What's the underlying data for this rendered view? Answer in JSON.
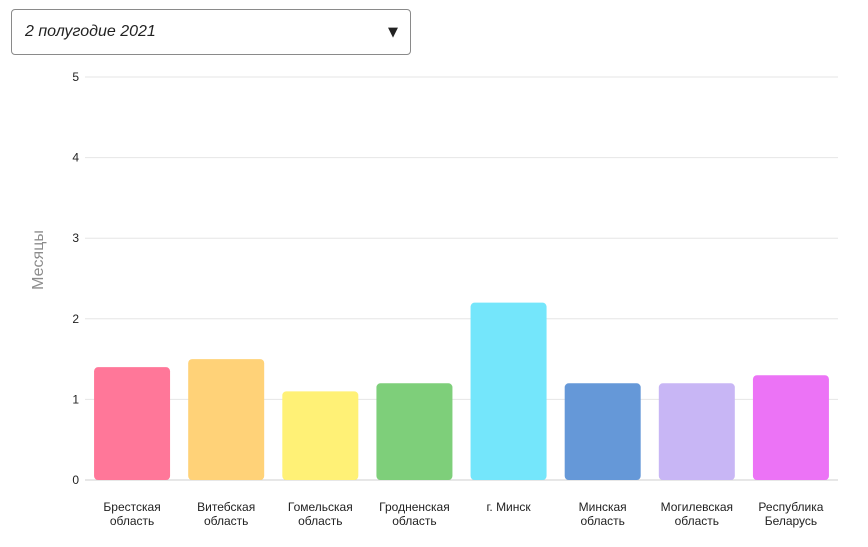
{
  "period_select": {
    "value": "2 полугодие 2021",
    "arrow_icon": "triangle-down-icon"
  },
  "chart_data": {
    "type": "bar",
    "ylabel": "Месяцы",
    "ylim": [
      0,
      5
    ],
    "yticks": [
      0,
      1,
      2,
      3,
      4,
      5
    ],
    "grid": true,
    "categories": [
      [
        "Брестская",
        "область"
      ],
      [
        "Витебская",
        "область"
      ],
      [
        "Гомельская",
        "область"
      ],
      [
        "Гродненская",
        "область"
      ],
      [
        "г. Минск"
      ],
      [
        "Минская",
        "область"
      ],
      [
        "Могилевская",
        "область"
      ],
      [
        "Республика",
        "Беларусь"
      ]
    ],
    "values": [
      1.4,
      1.5,
      1.1,
      1.2,
      2.2,
      1.2,
      1.2,
      1.3
    ],
    "colors": [
      "#ff7799",
      "#ffd278",
      "#fff176",
      "#7ecf7a",
      "#74e6fb",
      "#6598d8",
      "#c8b6f5",
      "#ec73f6"
    ]
  }
}
